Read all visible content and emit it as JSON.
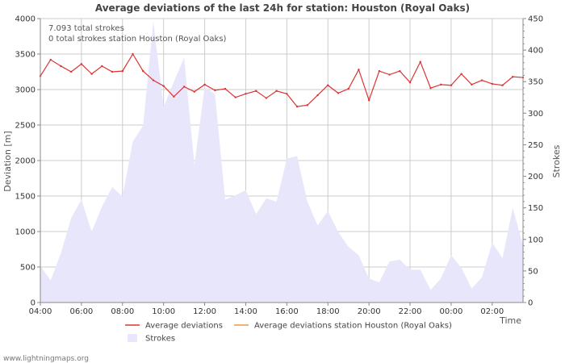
{
  "chart_data": {
    "type": "line",
    "title": "Average deviations of the last 24h for station: Houston (Royal Oaks)",
    "annotations": [
      "7.093 total strokes",
      "0 total strokes station Houston (Royal Oaks)"
    ],
    "ylabel": "Deviation  [m]",
    "y2label": "Strokes",
    "xlabel": "Time",
    "ylim": [
      0,
      4000
    ],
    "y2lim": [
      0,
      450
    ],
    "y_ticks": [
      0,
      500,
      1000,
      1500,
      2000,
      2500,
      3000,
      3500,
      4000
    ],
    "y2_ticks": [
      0,
      50,
      100,
      150,
      200,
      250,
      300,
      350,
      400,
      450
    ],
    "xlim": [
      4,
      27.5
    ],
    "x_ticks": [
      {
        "hour": 4,
        "label": "04:00"
      },
      {
        "hour": 6,
        "label": "06:00"
      },
      {
        "hour": 8,
        "label": "08:00"
      },
      {
        "hour": 10,
        "label": "10:00"
      },
      {
        "hour": 12,
        "label": "12:00"
      },
      {
        "hour": 14,
        "label": "14:00"
      },
      {
        "hour": 16,
        "label": "16:00"
      },
      {
        "hour": 18,
        "label": "18:00"
      },
      {
        "hour": 20,
        "label": "20:00"
      },
      {
        "hour": 22,
        "label": "22:00"
      },
      {
        "hour": 24,
        "label": "00:00"
      },
      {
        "hour": 26,
        "label": "02:00"
      }
    ],
    "legend": [
      {
        "name": "Average deviations",
        "color": "#dd3333",
        "kind": "line"
      },
      {
        "name": "Average deviations station Houston (Royal Oaks)",
        "color": "#ee9944",
        "kind": "line"
      },
      {
        "name": "Strokes",
        "color": "#e8e6fb",
        "kind": "area"
      }
    ],
    "series": [
      {
        "name": "Average deviations",
        "axis": "left",
        "color": "#dd3333",
        "x": [
          4,
          4.5,
          5,
          5.5,
          6,
          6.5,
          7,
          7.5,
          8,
          8.5,
          9,
          9.5,
          10,
          10.5,
          11,
          11.5,
          12,
          12.5,
          13,
          13.5,
          14,
          14.5,
          15,
          15.5,
          16,
          16.5,
          17,
          17.5,
          18,
          18.5,
          19,
          19.5,
          20,
          20.5,
          21,
          21.5,
          22,
          22.5,
          23,
          23.5,
          24,
          24.5,
          25,
          25.5,
          26,
          26.5,
          27,
          27.5
        ],
        "values": [
          3190,
          3420,
          3330,
          3250,
          3360,
          3220,
          3330,
          3250,
          3260,
          3500,
          3260,
          3130,
          3050,
          2900,
          3040,
          2970,
          3070,
          2990,
          3010,
          2890,
          2940,
          2980,
          2880,
          2980,
          2940,
          2760,
          2780,
          2920,
          3060,
          2950,
          3010,
          3280,
          2850,
          3260,
          3210,
          3260,
          3100,
          3390,
          3020,
          3070,
          3060,
          3220,
          3070,
          3130,
          3080,
          3060,
          3180,
          3170
        ]
      },
      {
        "name": "Average deviations station Houston (Royal Oaks)",
        "axis": "left",
        "color": "#ee9944",
        "x": [],
        "values": []
      },
      {
        "name": "Strokes",
        "axis": "right",
        "color": "#e8e6fb",
        "x": [
          4,
          4.5,
          5,
          5.5,
          6,
          6.5,
          7,
          7.5,
          8,
          8.5,
          9,
          9.5,
          10,
          10.5,
          11,
          11.5,
          12,
          12.5,
          13,
          13.5,
          14,
          14.5,
          15,
          15.5,
          16,
          16.5,
          17,
          17.5,
          18,
          18.5,
          19,
          19.5,
          20,
          20.5,
          21,
          21.5,
          22,
          22.5,
          23,
          23.5,
          24,
          24.5,
          25,
          25.5,
          26,
          26.5,
          27,
          27.5
        ],
        "values": [
          58,
          35,
          78,
          134,
          163,
          112,
          152,
          183,
          168,
          255,
          280,
          445,
          310,
          350,
          388,
          218,
          342,
          330,
          163,
          170,
          178,
          140,
          165,
          160,
          228,
          232,
          160,
          122,
          145,
          112,
          88,
          75,
          38,
          32,
          65,
          68,
          52,
          52,
          20,
          38,
          75,
          55,
          22,
          40,
          95,
          70,
          150,
          90
        ]
      }
    ]
  },
  "watermark": "www.lightningmaps.org"
}
